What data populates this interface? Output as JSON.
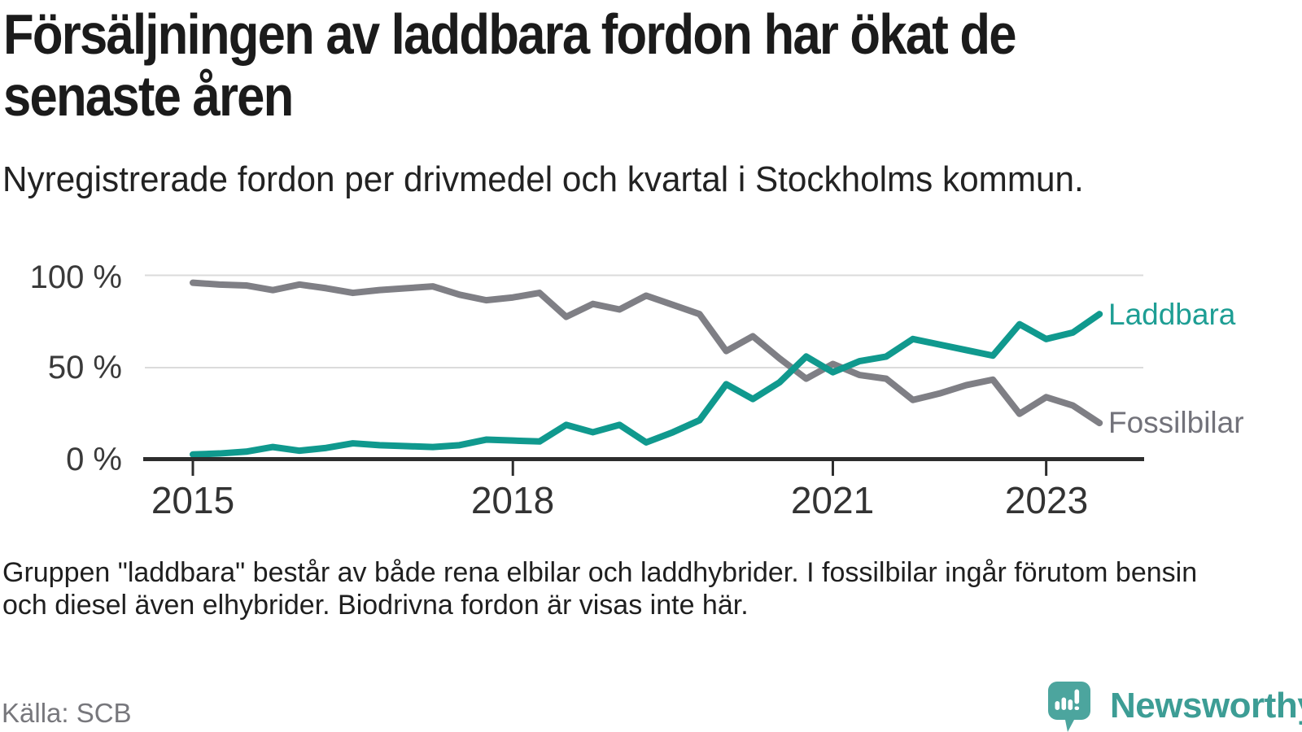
{
  "header": {
    "title_line1": "Försäljningen av laddbara fordon har ökat de",
    "title_line2": "senaste åren",
    "subtitle": "Nyregistrerade fordon per drivmedel och kvartal i Stockholms kommun."
  },
  "chart_data": {
    "type": "line",
    "unit": "%",
    "ylim": [
      0,
      100
    ],
    "grid_values": [
      50,
      100
    ],
    "y_tick_labels": [
      "100 %",
      "50 %",
      "0 %"
    ],
    "x_tick_labels": [
      "2015",
      "2018",
      "2021",
      "2023"
    ],
    "x_tick_indices": [
      0,
      12,
      24,
      32
    ],
    "quarters": [
      "2015 Q1",
      "2015 Q2",
      "2015 Q3",
      "2015 Q4",
      "2016 Q1",
      "2016 Q2",
      "2016 Q3",
      "2016 Q4",
      "2017 Q1",
      "2017 Q2",
      "2017 Q3",
      "2017 Q4",
      "2018 Q1",
      "2018 Q2",
      "2018 Q3",
      "2018 Q4",
      "2019 Q1",
      "2019 Q2",
      "2019 Q3",
      "2019 Q4",
      "2020 Q1",
      "2020 Q2",
      "2020 Q3",
      "2020 Q4",
      "2021 Q1",
      "2021 Q2",
      "2021 Q3",
      "2021 Q4",
      "2022 Q1",
      "2022 Q2",
      "2022 Q3",
      "2022 Q4",
      "2023 Q1",
      "2023 Q2",
      "2023 Q3"
    ],
    "series": [
      {
        "name": "Laddbara",
        "color": "#10998e",
        "label_color": "#1e9e94",
        "values": [
          3,
          3.5,
          4.5,
          7,
          5,
          6.5,
          9,
          8,
          7.5,
          7,
          8,
          11,
          10.5,
          10,
          19,
          15,
          19,
          9.5,
          15,
          21.5,
          41,
          33,
          42,
          56,
          47.5,
          53.5,
          56,
          65.5,
          62.5,
          59.5,
          56.5,
          73.5,
          65.5,
          69,
          79
        ]
      },
      {
        "name": "Fossilbilar",
        "color": "#7f7f85",
        "label_color": "#72727a",
        "values": [
          96,
          95,
          94.5,
          92,
          95,
          93,
          90.5,
          92,
          93,
          94,
          89.5,
          86.5,
          88,
          90.5,
          77.5,
          84.5,
          81.5,
          89,
          84,
          79,
          59,
          67,
          55,
          44,
          52,
          46,
          44,
          32.5,
          36,
          40.5,
          43.5,
          25,
          34,
          29.5,
          20
        ]
      }
    ],
    "styles": {
      "gridline_color": "#dbdbdb",
      "axis_color": "#2d2d2d",
      "line_width": 8
    }
  },
  "footnote": {
    "line1": "Gruppen \"laddbara\" består av både rena elbilar och laddhybrider. I fossilbilar ingår förutom bensin",
    "line2": "och diesel även elhybrider. Biodrivna fordon är visas inte här."
  },
  "source": "Källa: SCB",
  "branding": {
    "logo_text": "Newsworthy",
    "logo_text_color": "#3d9d95",
    "icon_color": "#4ca59e"
  }
}
